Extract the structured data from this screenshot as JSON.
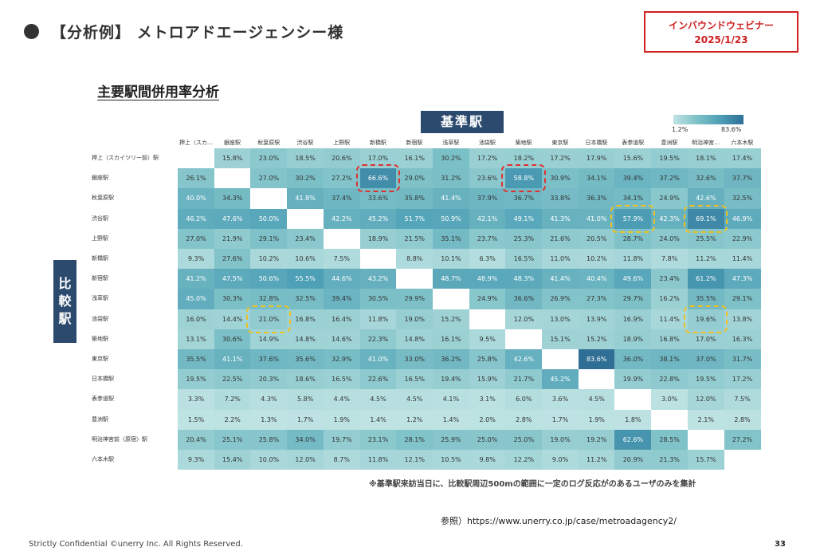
{
  "header": {
    "title": "【分析例】 メトロアドエージェンシー様",
    "badge_line1": "インバウンドウェビナー",
    "badge_line2": "2025/1/23"
  },
  "subtitle": "主要駅間併用率分析",
  "base_label": "基準駅",
  "compare_label": [
    "比",
    "較",
    "駅"
  ],
  "legend": {
    "min": "1.2%",
    "max": "83.6%",
    "colors": [
      "#bfe3e3",
      "#7fc2c8",
      "#4d9fb6",
      "#2f6f96"
    ]
  },
  "chart_data": {
    "type": "heatmap",
    "x_label": "基準駅",
    "y_label": "比較駅",
    "col_labels": [
      "押上（スカ…",
      "銀座駅",
      "秋葉原駅",
      "渋谷駅",
      "上野駅",
      "新橋駅",
      "新宿駅",
      "浅草駅",
      "池袋駅",
      "築地駅",
      "東京駅",
      "日本橋駅",
      "表参道駅",
      "豊洲駅",
      "明治神宮…",
      "六本木駅"
    ],
    "row_labels": [
      "押上（スカイツリー前）駅",
      "銀座駅",
      "秋葉原駅",
      "渋谷駅",
      "上野駅",
      "新橋駅",
      "新宿駅",
      "浅草駅",
      "池袋駅",
      "築地駅",
      "東京駅",
      "日本橋駅",
      "表参道駅",
      "豊洲駅",
      "明治神宮前〈原宿〉駅",
      "六本木駅"
    ],
    "values": [
      [
        null,
        15.8,
        23.0,
        18.5,
        20.6,
        17.0,
        16.1,
        30.2,
        17.2,
        18.2,
        17.2,
        17.9,
        15.6,
        19.5,
        18.1,
        17.4
      ],
      [
        26.1,
        null,
        27.0,
        30.2,
        27.2,
        66.6,
        29.0,
        31.2,
        23.6,
        58.8,
        30.9,
        34.1,
        39.4,
        37.2,
        32.6,
        37.7
      ],
      [
        40.0,
        34.3,
        null,
        41.8,
        37.4,
        33.6,
        35.8,
        41.4,
        37.9,
        36.7,
        33.8,
        36.3,
        34.1,
        24.9,
        42.6,
        32.5
      ],
      [
        46.2,
        47.6,
        50.0,
        null,
        42.2,
        45.2,
        51.7,
        50.9,
        42.1,
        49.1,
        41.3,
        41.0,
        57.9,
        42.3,
        69.1,
        46.9
      ],
      [
        27.0,
        21.9,
        29.1,
        23.4,
        null,
        18.9,
        21.5,
        35.1,
        23.7,
        25.3,
        21.6,
        20.5,
        28.7,
        24.0,
        25.5,
        22.9
      ],
      [
        9.3,
        27.6,
        10.2,
        10.6,
        7.5,
        null,
        8.8,
        10.1,
        6.3,
        16.5,
        11.0,
        10.2,
        11.8,
        7.8,
        11.2,
        11.4
      ],
      [
        41.2,
        47.5,
        50.6,
        55.5,
        44.6,
        43.2,
        null,
        48.7,
        48.9,
        48.3,
        41.4,
        40.4,
        49.6,
        23.4,
        61.2,
        47.3
      ],
      [
        45.0,
        30.3,
        32.8,
        32.5,
        39.4,
        30.5,
        29.9,
        null,
        24.9,
        36.6,
        26.9,
        27.3,
        29.7,
        16.2,
        35.5,
        29.1
      ],
      [
        16.0,
        14.4,
        21.0,
        16.8,
        16.4,
        11.8,
        19.0,
        15.2,
        null,
        12.0,
        13.0,
        13.9,
        16.9,
        11.4,
        19.6,
        13.8
      ],
      [
        13.1,
        30.6,
        14.9,
        14.8,
        14.6,
        22.3,
        14.8,
        16.1,
        9.5,
        null,
        15.1,
        15.2,
        18.9,
        16.8,
        17.0,
        16.3
      ],
      [
        35.5,
        41.1,
        37.6,
        35.6,
        32.9,
        41.0,
        33.0,
        36.2,
        25.8,
        42.6,
        null,
        83.6,
        36.0,
        38.1,
        37.0,
        31.7
      ],
      [
        19.5,
        22.5,
        20.3,
        18.6,
        16.5,
        22.6,
        16.5,
        19.4,
        15.9,
        21.7,
        45.2,
        null,
        19.9,
        22.8,
        19.5,
        17.2
      ],
      [
        3.3,
        7.2,
        4.3,
        5.8,
        4.4,
        4.5,
        4.5,
        4.1,
        3.1,
        6.0,
        3.6,
        4.5,
        null,
        3.0,
        12.0,
        7.5
      ],
      [
        1.5,
        2.2,
        1.3,
        1.7,
        1.9,
        1.4,
        1.2,
        1.4,
        2.0,
        2.8,
        1.7,
        1.9,
        1.8,
        null,
        2.1,
        2.8
      ],
      [
        20.4,
        25.1,
        25.8,
        34.0,
        19.7,
        23.1,
        28.1,
        25.9,
        25.0,
        25.0,
        19.0,
        19.2,
        62.6,
        28.5,
        null,
        27.2
      ],
      [
        9.3,
        15.4,
        10.0,
        12.0,
        8.7,
        11.8,
        12.1,
        10.5,
        9.8,
        12.2,
        9.0,
        11.2,
        20.9,
        21.3,
        15.7,
        null
      ]
    ],
    "unit": "%",
    "range": [
      1.2,
      83.6
    ],
    "highlights_red": [
      [
        1,
        5
      ],
      [
        1,
        9
      ]
    ],
    "highlights_yellow": [
      [
        3,
        12
      ],
      [
        3,
        14
      ],
      [
        8,
        2
      ],
      [
        8,
        14
      ]
    ]
  },
  "note": "※基準駅来訪当日に、比較駅周辺500mの範囲に一定のログ反応がのあるユーザのみを集計",
  "reference": "参照）https://www.unerry.co.jp/case/metroadagency2/",
  "footer": "Strictly Confidential   ©unerry Inc. All Rights Reserved.",
  "page_number": "33"
}
